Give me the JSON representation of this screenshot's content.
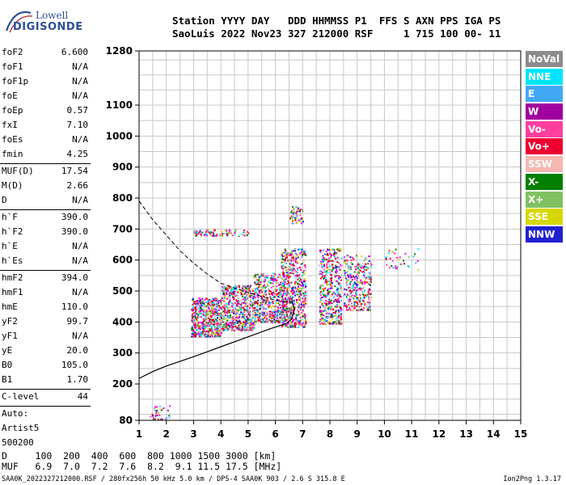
{
  "logo": {
    "brand_top": "Lowell",
    "brand_bottom": "DIGISONDE"
  },
  "header": {
    "line1": "Station YYYY DAY   DDD HHMMSS P1  FFS S AXN PPS IGA PS",
    "line2": "SaoLuis 2022 Nov23 327 212000 RSF     1 715 100 00- 11"
  },
  "params": [
    {
      "name": "foF2",
      "value": "6.600"
    },
    {
      "name": "foF1",
      "value": "N/A"
    },
    {
      "name": "foF1p",
      "value": "N/A"
    },
    {
      "name": "foE",
      "value": "N/A"
    },
    {
      "name": "foEp",
      "value": "0.57"
    },
    {
      "name": "fxI",
      "value": "7.10"
    },
    {
      "name": "foEs",
      "value": "N/A"
    },
    {
      "name": "fmin",
      "value": "4.25"
    },
    {
      "name": "MUF(D)",
      "value": "17.54"
    },
    {
      "name": "M(D)",
      "value": "2.66"
    },
    {
      "name": "D",
      "value": "N/A"
    },
    {
      "name": "h`F",
      "value": "390.0"
    },
    {
      "name": "h`F2",
      "value": "390.0"
    },
    {
      "name": "h`E",
      "value": "N/A"
    },
    {
      "name": "h`Es",
      "value": "N/A"
    },
    {
      "name": "hmF2",
      "value": "394.0"
    },
    {
      "name": "hmF1",
      "value": "N/A"
    },
    {
      "name": "hmE",
      "value": "110.0"
    },
    {
      "name": "yF2",
      "value": "99.7"
    },
    {
      "name": "yF1",
      "value": "N/A"
    },
    {
      "name": "yE",
      "value": "20.0"
    },
    {
      "name": "B0",
      "value": "105.0"
    },
    {
      "name": "B1",
      "value": "1.70"
    },
    {
      "name": "C-level",
      "value": "44"
    },
    {
      "name": "Auto:",
      "value": ""
    },
    {
      "name": "Artist5",
      "value": ""
    },
    {
      "name": "500200",
      "value": ""
    }
  ],
  "legend": [
    {
      "label": "NoVal",
      "color": "#8c8c8c"
    },
    {
      "label": "NNE",
      "color": "#00e5ff"
    },
    {
      "label": "E",
      "color": "#3fa9f5"
    },
    {
      "label": "W",
      "color": "#a0009f"
    },
    {
      "label": "Vo-",
      "color": "#ff3fa0"
    },
    {
      "label": "Vo+",
      "color": "#ee0030"
    },
    {
      "label": "SSW",
      "color": "#f4b8b0"
    },
    {
      "label": "X-",
      "color": "#007f00"
    },
    {
      "label": "X+",
      "color": "#80c060"
    },
    {
      "label": "SSE",
      "color": "#d7d700"
    },
    {
      "label": "NNW",
      "color": "#2020d0"
    }
  ],
  "bottom": {
    "line1": "D     100  200  400  600  800 1000 1500 3000 [km]",
    "line2": "MUF   6.9  7.0  7.2  7.6  8.2  9.1 11.5 17.5 [MHz]"
  },
  "footer": {
    "left": "SAA0K_2022327212000.RSF / 280fx256h 50 kHz 5.0 km / DPS-4 SAA0K 903 / 2.6 S 315.8 E",
    "right": "Ion2Png 1.3.17"
  },
  "chart_data": {
    "type": "scatter",
    "x_ticks": [
      "1",
      "2",
      "3",
      "4",
      "5",
      "6",
      "7",
      "8",
      "9",
      "10",
      "11",
      "12",
      "13",
      "14",
      "15"
    ],
    "y_ticks": [
      "80",
      "200",
      "300",
      "400",
      "500",
      "600",
      "700",
      "800",
      "900",
      "1000",
      "1100",
      "1280"
    ],
    "xlim": [
      1,
      15
    ],
    "ylim": [
      80,
      1280
    ],
    "grid": true,
    "clusters": [
      {
        "fmin": 2.9,
        "fmax": 4.0,
        "hmin": 355,
        "hmax": 480,
        "n": 650
      },
      {
        "fmin": 4.0,
        "fmax": 5.2,
        "hmin": 375,
        "hmax": 520,
        "n": 650
      },
      {
        "fmin": 5.2,
        "fmax": 6.3,
        "hmin": 400,
        "hmax": 560,
        "n": 550
      },
      {
        "fmin": 6.2,
        "fmax": 7.1,
        "hmin": 385,
        "hmax": 640,
        "n": 650
      },
      {
        "fmin": 7.6,
        "fmax": 8.4,
        "hmin": 395,
        "hmax": 640,
        "n": 500
      },
      {
        "fmin": 8.5,
        "fmax": 9.5,
        "hmin": 440,
        "hmax": 620,
        "n": 350
      },
      {
        "fmin": 3.0,
        "fmax": 5.0,
        "hmin": 680,
        "hmax": 700,
        "n": 120
      },
      {
        "fmin": 6.5,
        "fmax": 7.0,
        "hmin": 720,
        "hmax": 775,
        "n": 60
      },
      {
        "fmin": 10.0,
        "fmax": 11.3,
        "hmin": 570,
        "hmax": 640,
        "n": 40
      },
      {
        "fmin": 1.4,
        "fmax": 2.1,
        "hmin": 85,
        "hmax": 130,
        "n": 40
      }
    ],
    "profile_solid": [
      [
        1.0,
        218
      ],
      [
        1.5,
        240
      ],
      [
        2,
        258
      ],
      [
        3,
        288
      ],
      [
        4,
        320
      ],
      [
        5,
        352
      ],
      [
        5.8,
        378
      ],
      [
        6.4,
        395
      ],
      [
        6.6,
        410
      ],
      [
        6.7,
        440
      ],
      [
        6.6,
        470
      ]
    ],
    "profile_dashed": [
      [
        1.0,
        790
      ],
      [
        1.5,
        730
      ],
      [
        2,
        680
      ],
      [
        2.5,
        630
      ],
      [
        3,
        590
      ],
      [
        3.5,
        555
      ],
      [
        4,
        525
      ],
      [
        5,
        495
      ],
      [
        6,
        470
      ],
      [
        6.6,
        460
      ]
    ]
  }
}
